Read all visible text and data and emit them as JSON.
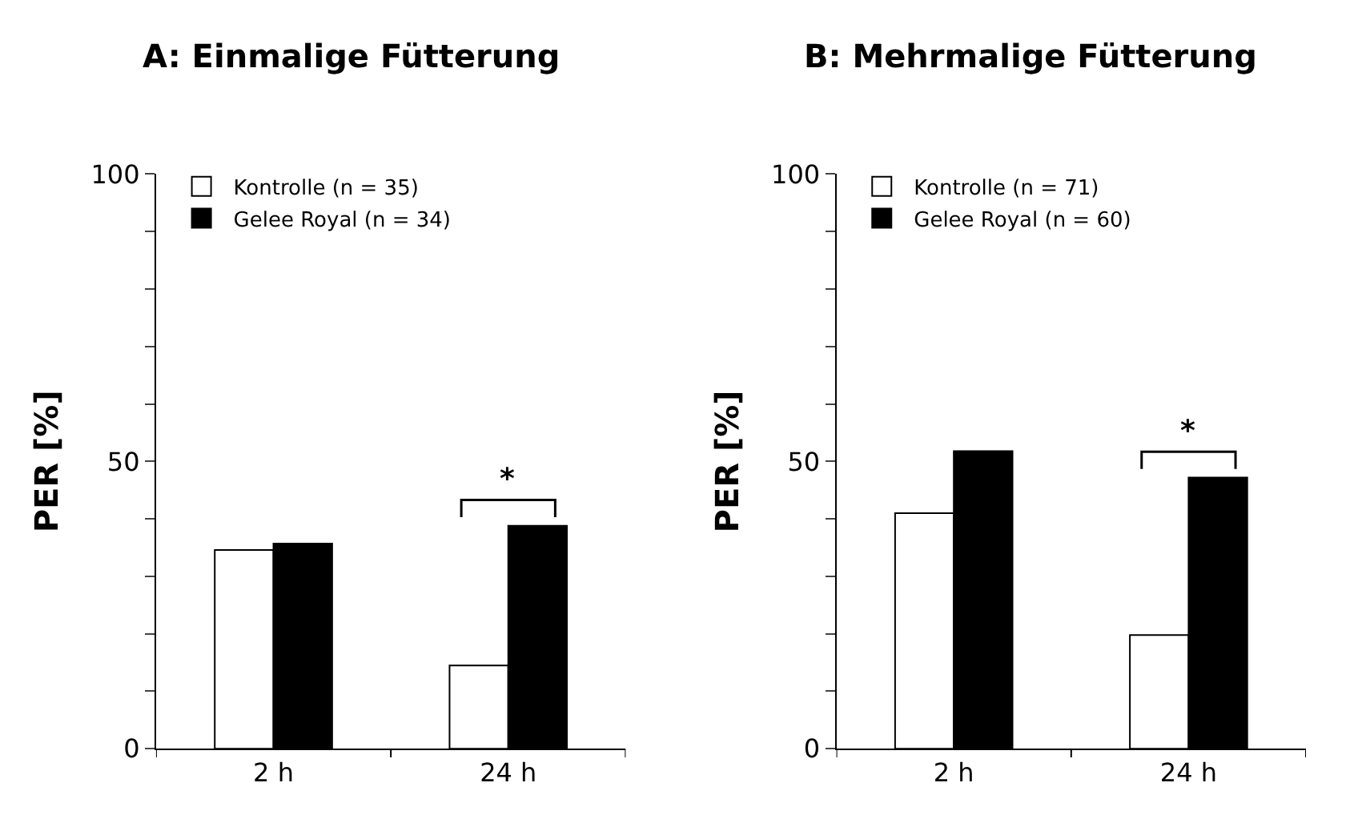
{
  "chart_data": [
    {
      "type": "bar",
      "title": "A: Einmalige Fütterung",
      "ylabel": "PER [%]",
      "categories": [
        "2 h",
        "24 h"
      ],
      "series": [
        {
          "name": "Kontrolle (n = 35)",
          "color": "#ffffff",
          "values": [
            34.6,
            14.5
          ]
        },
        {
          "name": "Gelee Royal (n = 34)",
          "color": "#000000",
          "values": [
            35.7,
            38.8
          ]
        }
      ],
      "ylim": [
        0,
        100
      ],
      "yticks": [
        0,
        {
          "value": 10,
          "label": null
        },
        {
          "value": 20,
          "label": null
        },
        {
          "value": 30,
          "label": null
        },
        {
          "value": 40,
          "label": null
        },
        50,
        {
          "value": 60,
          "label": null
        },
        {
          "value": 70,
          "label": null
        },
        {
          "value": 80,
          "label": null
        },
        {
          "value": 90,
          "label": null
        },
        100
      ],
      "annotations": [
        "*"
      ],
      "legend": "top left"
    },
    {
      "type": "bar",
      "title": "B: Mehrmalige Fütterung",
      "ylabel": "PER [%]",
      "categories": [
        "2 h",
        "24 h"
      ],
      "series": [
        {
          "name": "Kontrolle (n = 71)",
          "color": "#ffffff",
          "values": [
            41,
            19.8
          ]
        },
        {
          "name": "Gelee Royal (n = 60)",
          "color": "#000000",
          "values": [
            51.8,
            47.2
          ]
        }
      ],
      "ylim": [
        0,
        100
      ],
      "yticks": [
        0,
        {
          "value": 10,
          "label": null
        },
        {
          "value": 20,
          "label": null
        },
        {
          "value": 30,
          "label": null
        },
        {
          "value": 40,
          "label": null
        },
        50,
        {
          "value": 60,
          "label": null
        },
        {
          "value": 70,
          "label": null
        },
        {
          "value": 80,
          "label": null
        },
        {
          "value": 90,
          "label": null
        },
        100
      ],
      "annotations": [
        "*"
      ],
      "legend": "top left"
    }
  ]
}
